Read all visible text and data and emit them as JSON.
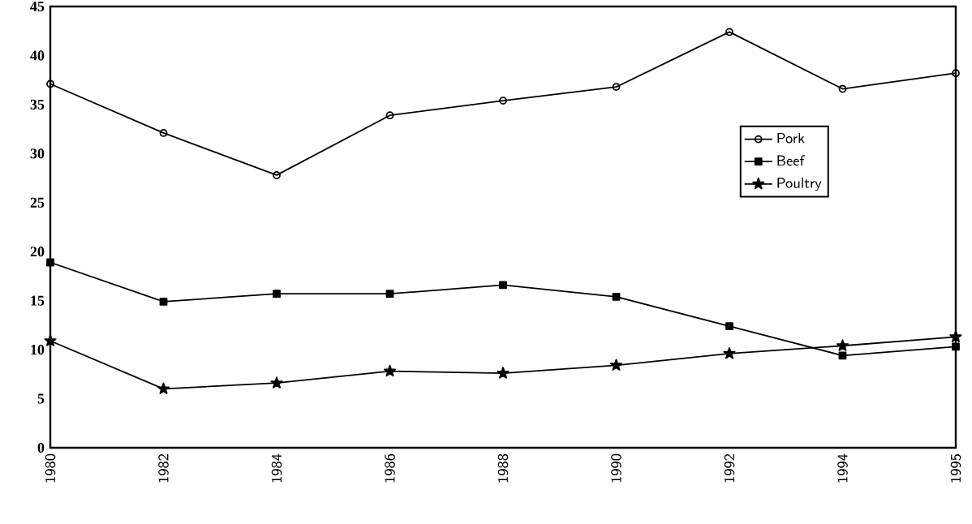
{
  "chart_data": {
    "type": "line",
    "categories": [
      "1980",
      "1982",
      "1984",
      "1986",
      "1988",
      "1990",
      "1992",
      "1994",
      "1995"
    ],
    "series": [
      {
        "name": "Pork",
        "color": "#000000",
        "marker": "circle",
        "values": [
          37.1,
          32.1,
          27.8,
          33.9,
          35.4,
          36.8,
          42.4,
          36.6,
          38.2
        ]
      },
      {
        "name": "Beef",
        "color": "#000000",
        "marker": "square",
        "values": [
          18.9,
          14.9,
          15.7,
          15.7,
          16.6,
          15.4,
          12.4,
          9.4,
          10.3
        ]
      },
      {
        "name": "Poultry",
        "color": "#000000",
        "marker": "star",
        "values": [
          10.9,
          6.0,
          6.6,
          7.8,
          7.6,
          8.4,
          9.6,
          10.4,
          11.3
        ]
      }
    ],
    "ylim": [
      0,
      45
    ],
    "yticks": [
      0,
      5,
      10,
      15,
      20,
      25,
      30,
      35,
      40,
      45
    ],
    "line_style": "solid",
    "legend": "right"
  }
}
